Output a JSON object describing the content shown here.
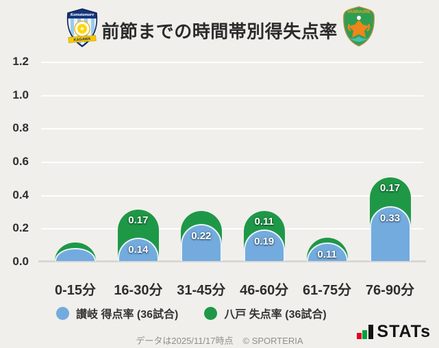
{
  "page": {
    "background": "#F0EFEB"
  },
  "header": {
    "title": "前節までの時間帯別得失点率",
    "left_crest": "カマタマーレ讃岐",
    "left_crest_banner": "KAGAWA",
    "right_crest": "ヴァンラーレ八戸",
    "right_crest_banner": "VANRAURE"
  },
  "chart_data": {
    "type": "bar",
    "title": "前節までの時間帯別得失点率",
    "categories": [
      "0-15分",
      "16-30分",
      "31-45分",
      "46-60分",
      "61-75分",
      "76-90分"
    ],
    "series": [
      {
        "name": "讃岐 得点率 (36試合)",
        "color": "#73ABDE",
        "values": [
          0.08,
          0.14,
          0.22,
          0.19,
          0.11,
          0.33
        ],
        "data_labels": [
          "",
          "0.14",
          "0.22",
          "0.19",
          "0.11",
          "0.33"
        ]
      },
      {
        "name": "八戸 失点率 (36試合)",
        "color": "#1E9847",
        "values": [
          0.03,
          0.17,
          0.08,
          0.11,
          0.03,
          0.17
        ],
        "data_labels": [
          "",
          "0.17",
          "",
          "0.11",
          "",
          "0.17"
        ]
      }
    ],
    "stacked": true,
    "bar_style": "rounded-top",
    "xlabel": "",
    "ylabel": "",
    "ylim": [
      0,
      1.2
    ],
    "yticks": [
      "0.0",
      "0.2",
      "0.4",
      "0.6",
      "0.8",
      "1.0",
      "1.2"
    ],
    "grid": true,
    "legend_position": "bottom"
  },
  "legend": {
    "items": [
      {
        "label": "讃岐 得点率 (36試合)",
        "color": "#73ABDE"
      },
      {
        "label": "八戸 失点率 (36試合)",
        "color": "#1E9847"
      }
    ]
  },
  "footer": {
    "note": "データは2025/11/17時点",
    "copyright": "© SPORTERIA",
    "brand": "STATs"
  }
}
